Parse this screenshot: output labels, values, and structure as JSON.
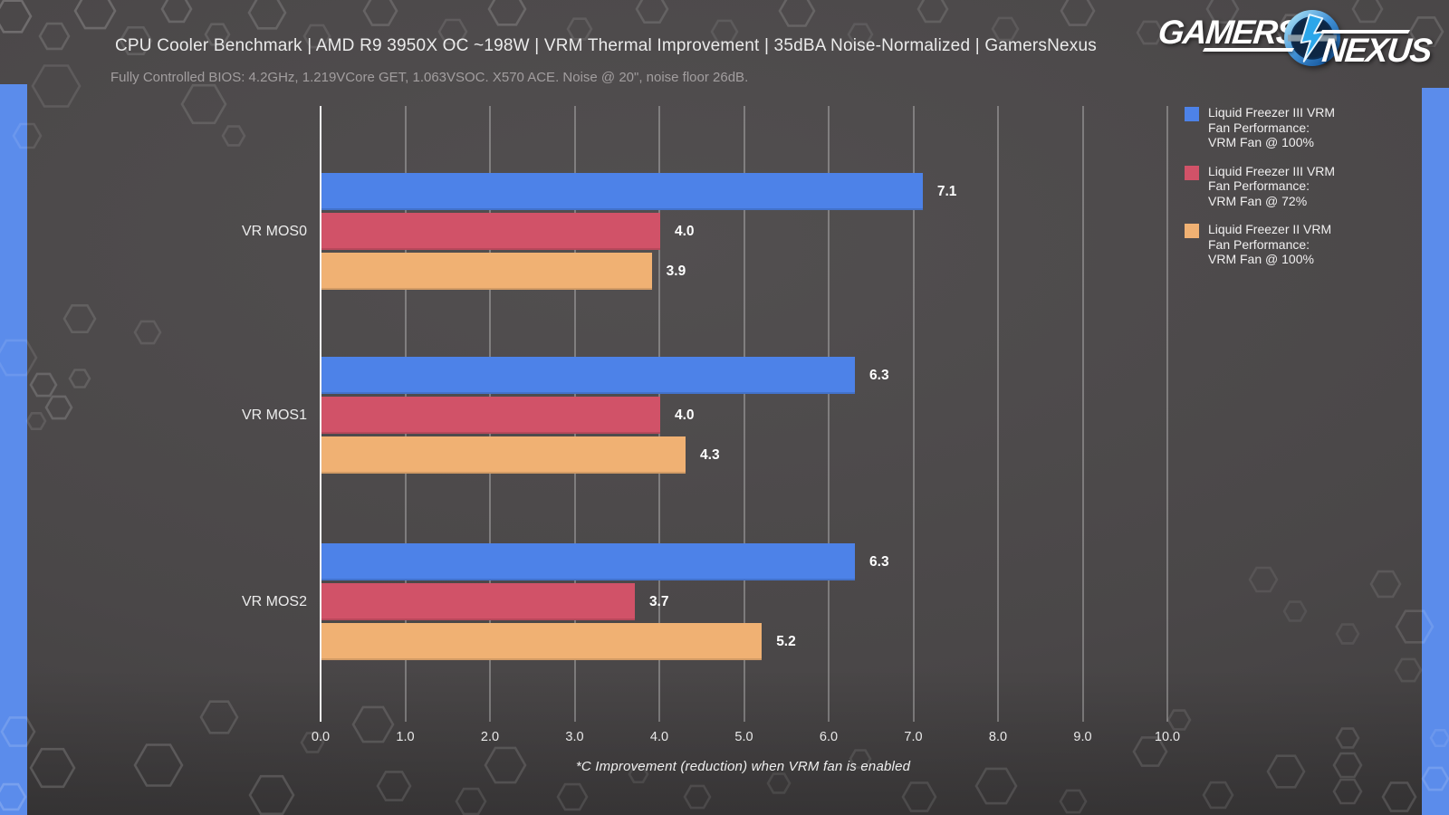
{
  "colors": {
    "background": "#4b4849",
    "edge_stripe": "#5b8ceb",
    "series_blue": "#4d82e8",
    "series_red": "#d15268",
    "series_orange": "#f0b173",
    "grid_line": "#d2d2d2",
    "axis_line": "#f4f4f4"
  },
  "logo": {
    "word_left": "GAMERS",
    "word_right": "NEXUS",
    "emblem": "lightning-n-globe"
  },
  "legend": {
    "entries": [
      {
        "label": "Liquid Freezer III VRM\nFan Performance:\nVRM Fan @ 100%",
        "color": "#4d82e8"
      },
      {
        "label": "Liquid Freezer III VRM\nFan Performance:\nVRM Fan @ 72%",
        "color": "#d15268"
      },
      {
        "label": "Liquid Freezer II VRM\nFan Performance:\nVRM Fan @ 100%",
        "color": "#f0b173"
      }
    ]
  },
  "chart_data": {
    "type": "bar",
    "orientation": "horizontal",
    "title": "CPU Cooler Benchmark | AMD R9 3950X OC ~198W | VRM Thermal Improvement | 35dBA Noise-Normalized | GamersNexus",
    "subtitle": "Fully Controlled BIOS: 4.2GHz, 1.219VCore GET, 1.063VSOC. X570 ACE. Noise @ 20\", noise floor 26dB.",
    "categories": [
      "VR MOS0",
      "VR MOS1",
      "VR MOS2"
    ],
    "series": [
      {
        "name": "Liquid Freezer III VRM Fan Performance: VRM Fan @ 100%",
        "color": "#4d82e8",
        "values": [
          7.1,
          6.3,
          6.3
        ]
      },
      {
        "name": "Liquid Freezer III VRM Fan Performance: VRM Fan @ 72%",
        "color": "#d15268",
        "values": [
          4.0,
          4.0,
          3.7
        ]
      },
      {
        "name": "Liquid Freezer II VRM Fan Performance: VRM Fan @ 100%",
        "color": "#f0b173",
        "values": [
          3.9,
          4.3,
          5.2
        ]
      }
    ],
    "xlabel": "*C Improvement (reduction) when VRM fan is enabled",
    "xlim": [
      0,
      10.8
    ],
    "x_tick_labels": [
      "0.0",
      "1.0",
      "2.0",
      "3.0",
      "4.0",
      "5.0",
      "6.0",
      "7.0",
      "8.0",
      "9.0",
      "10.0"
    ],
    "grid": true,
    "legend_position": "right",
    "value_label_decimals": 1
  }
}
